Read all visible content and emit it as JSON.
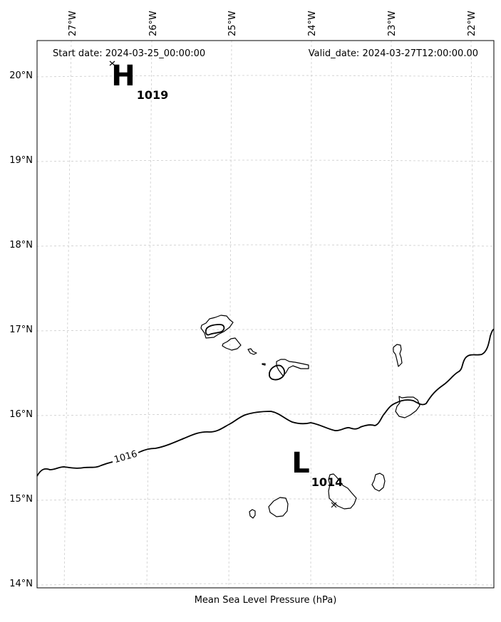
{
  "header": {
    "start_date": "Start date: 2024-03-25_00:00:00",
    "valid_date": "Valid_date: 2024-03-27T12:00:00.00"
  },
  "caption": "Mean Sea Level Pressure (hPa)",
  "longitude_labels": [
    "27°W",
    "26°W",
    "25°W",
    "24°W",
    "23°W",
    "22°W"
  ],
  "latitude_labels": [
    "20°N",
    "19°N",
    "18°N",
    "17°N",
    "16°N",
    "15°N",
    "14°N"
  ],
  "pressure_centers": [
    {
      "type": "high",
      "letter": "H",
      "value": "1019"
    },
    {
      "type": "low",
      "letter": "L",
      "value": "1014"
    }
  ],
  "isobars": [
    {
      "label": "1016"
    }
  ],
  "colors": {
    "coast": "#000000",
    "isobar": "#000000",
    "grid": "#cccccc"
  }
}
